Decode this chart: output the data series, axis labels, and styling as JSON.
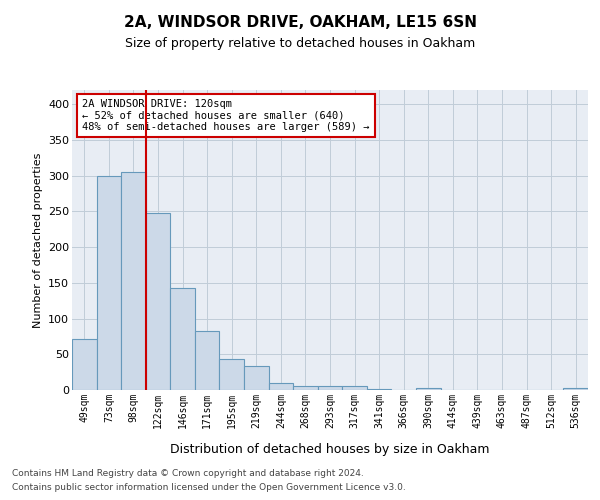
{
  "title1": "2A, WINDSOR DRIVE, OAKHAM, LE15 6SN",
  "title2": "Size of property relative to detached houses in Oakham",
  "xlabel": "Distribution of detached houses by size in Oakham",
  "ylabel": "Number of detached properties",
  "categories": [
    "49sqm",
    "73sqm",
    "98sqm",
    "122sqm",
    "146sqm",
    "171sqm",
    "195sqm",
    "219sqm",
    "244sqm",
    "268sqm",
    "293sqm",
    "317sqm",
    "341sqm",
    "366sqm",
    "390sqm",
    "414sqm",
    "439sqm",
    "463sqm",
    "487sqm",
    "512sqm",
    "536sqm"
  ],
  "values": [
    72,
    300,
    305,
    248,
    143,
    83,
    44,
    33,
    10,
    6,
    5,
    6,
    1,
    0,
    3,
    0,
    0,
    0,
    0,
    0,
    3
  ],
  "bar_color": "#ccd9e8",
  "bar_edge_color": "#6699bb",
  "vline_color": "#cc0000",
  "annotation_title": "2A WINDSOR DRIVE: 120sqm",
  "annotation_line1": "← 52% of detached houses are smaller (640)",
  "annotation_line2": "48% of semi-detached houses are larger (589) →",
  "annotation_box_color": "#cc0000",
  "ylim": [
    0,
    420
  ],
  "yticks": [
    0,
    50,
    100,
    150,
    200,
    250,
    300,
    350,
    400
  ],
  "footer1": "Contains HM Land Registry data © Crown copyright and database right 2024.",
  "footer2": "Contains public sector information licensed under the Open Government Licence v3.0.",
  "bg_color": "#ffffff",
  "axes_bg_color": "#e8edf4",
  "grid_color": "#c0ccd8"
}
